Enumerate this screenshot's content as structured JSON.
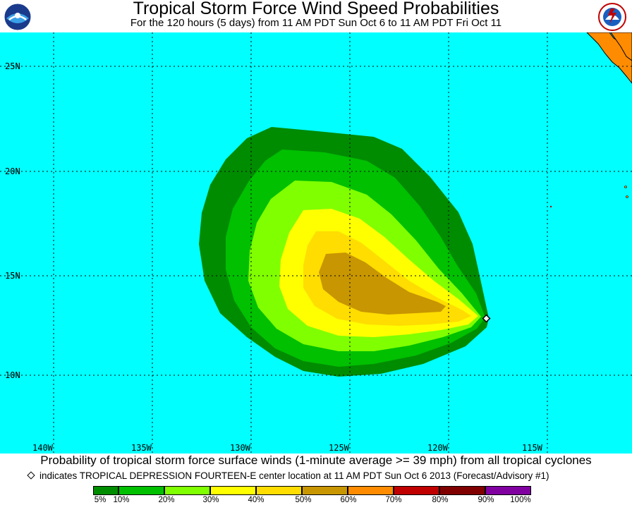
{
  "header": {
    "title": "Tropical Storm Force Wind Speed Probabilities",
    "subtitle": "For the 120 hours (5 days) from 11 AM PDT Sun Oct 6 to 11 AM PDT Fri Oct 11"
  },
  "logos": {
    "left": "noaa-logo",
    "right": "nws-logo"
  },
  "colors": {
    "ocean": "#00ffff",
    "land": "#ff8c00",
    "p5": "#008c00",
    "p10": "#00c000",
    "p20": "#80ff00",
    "p30": "#ffff00",
    "p40": "#ffdd00",
    "p50": "#c89600",
    "p60": "#ff8c00",
    "p70": "#ff4000",
    "p80": "#c00000",
    "p90": "#800000",
    "p100": "#8000a0"
  },
  "map": {
    "lat_labels": [
      "25N",
      "20N",
      "15N",
      "10N"
    ],
    "lon_labels": [
      "140W",
      "135W",
      "130W",
      "125W",
      "120W",
      "115W"
    ],
    "lat_values": [
      25,
      20,
      15,
      10
    ],
    "lon_values": [
      -140,
      -135,
      -130,
      -125,
      -120,
      -115
    ],
    "center_marker": {
      "lat": 12.9,
      "lon": -117.5
    }
  },
  "footer": {
    "caption": "Probability of tropical storm force surface winds (1-minute average >= 39 mph) from all tropical cyclones",
    "indicates": "indicates TROPICAL DEPRESSION FOURTEEN-E center location at 11 AM PDT Sun Oct 6 2013 (Forecast/Advisory #1)"
  },
  "legend": {
    "labels": [
      "5%",
      "10%",
      "20%",
      "30%",
      "40%",
      "50%",
      "60%",
      "70%",
      "80%",
      "90%",
      "100%"
    ]
  }
}
